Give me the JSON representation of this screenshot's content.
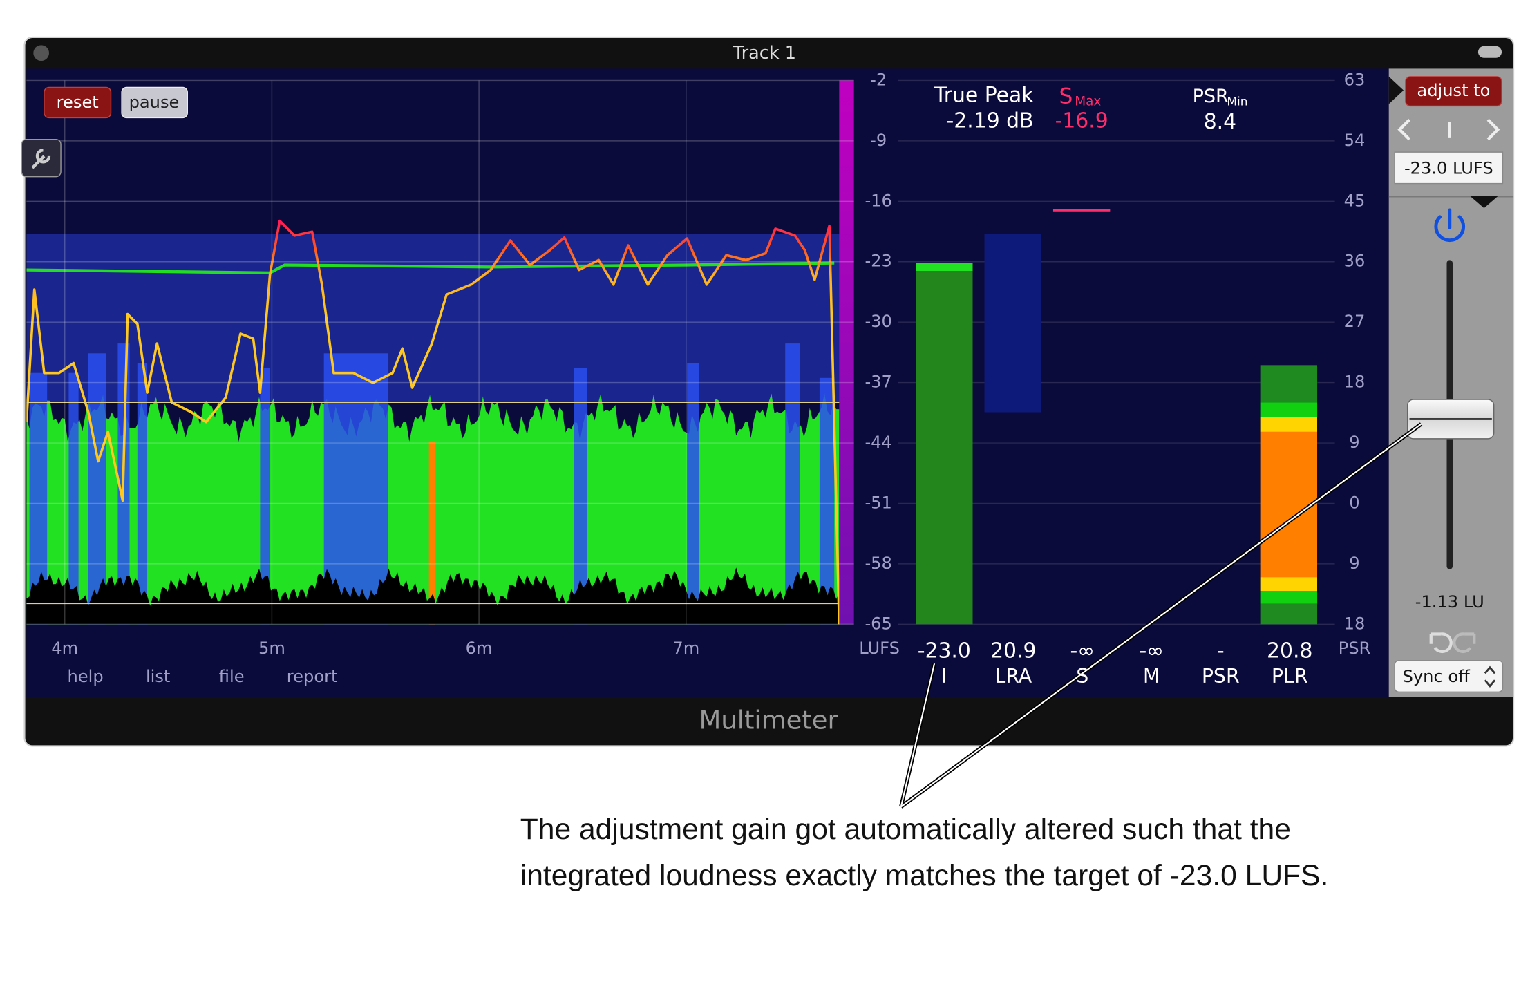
{
  "window": {
    "title": "Track 1",
    "footer": "Multimeter"
  },
  "buttons": {
    "reset": "reset",
    "pause": "pause"
  },
  "graph": {
    "lufs_ticks": [
      "-2",
      "-9",
      "-16",
      "-23",
      "-30",
      "-37",
      "-44",
      "-51",
      "-58",
      "-65"
    ],
    "unit": "LUFS",
    "time_labels": [
      "4m",
      "5m",
      "6m",
      "7m"
    ],
    "links": [
      "help",
      "list",
      "file",
      "report"
    ]
  },
  "readouts": {
    "true_peak_label": "True Peak",
    "true_peak": "-2.19 dB",
    "s_max_label": "S",
    "s_max_sub": "Max",
    "s_max": "-16.9",
    "psr_min_label": "PSR",
    "psr_min_sub": "Min",
    "psr_min": "8.4"
  },
  "meters": [
    {
      "value": "-23.0",
      "label": "I"
    },
    {
      "value": "20.9",
      "label": "LRA"
    },
    {
      "value": "-∞",
      "label": "S"
    },
    {
      "value": "-∞",
      "label": "M"
    },
    {
      "value": "-",
      "label": "PSR"
    },
    {
      "value": "20.8",
      "label": "PLR"
    }
  ],
  "psr_ticks": [
    "63",
    "54",
    "45",
    "36",
    "27",
    "18",
    "9",
    "0",
    "9",
    "18"
  ],
  "psr_unit": "PSR",
  "side": {
    "adjust_to": "adjust to",
    "target": "-23.0 LUFS",
    "gain": "-1.13 LU",
    "sync": "Sync off"
  },
  "annotation": {
    "lines": [
      "The adjustment gain got automatically altered such that the",
      "integrated loudness exactly matches the target of -23.0 LUFS."
    ]
  }
}
